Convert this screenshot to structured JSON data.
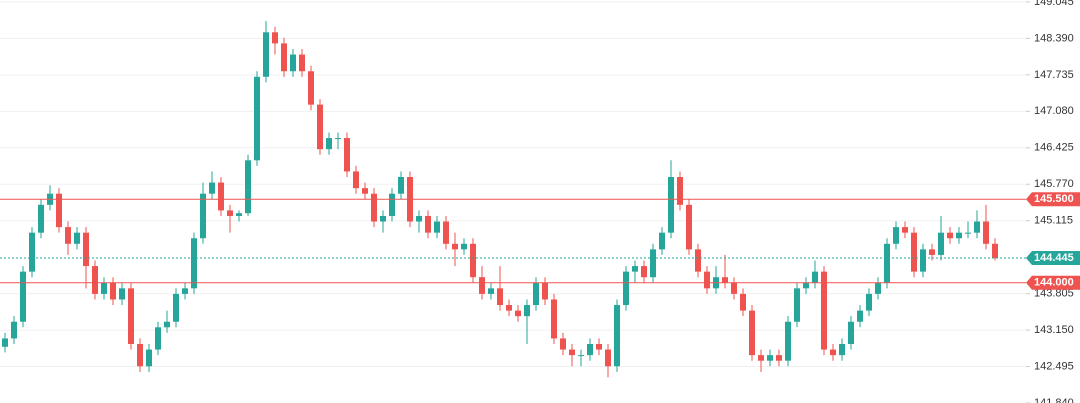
{
  "chart_data": {
    "type": "candlestick",
    "ylim": [
      141.84,
      149.08
    ],
    "yticks": [
      149.045,
      {
        "value": 148.39,
        "label": "148.390"
      },
      147.735,
      {
        "value": 147.08,
        "label": "147.080"
      },
      146.425,
      {
        "value": 145.77,
        "label": "145.770"
      },
      145.115,
      143.805,
      {
        "value": 143.15,
        "label": "143.150"
      },
      142.495,
      {
        "value": 141.84,
        "label": "141.840"
      }
    ],
    "grid": true,
    "up_color": "#26a69a",
    "down_color": "#ef5350",
    "levels": [
      {
        "value": 145.5,
        "label": "145.500",
        "color": "#ef5350"
      },
      {
        "value": 144.0,
        "label": "144.000",
        "color": "#ef5350"
      }
    ],
    "last_price": {
      "value": 144.445,
      "label": "144.445",
      "color": "#26a69a"
    },
    "candles": [
      [
        142.85,
        143.1,
        142.75,
        143.0
      ],
      [
        143.0,
        143.4,
        142.9,
        143.3
      ],
      [
        143.3,
        144.3,
        143.2,
        144.2
      ],
      [
        144.2,
        145.0,
        144.1,
        144.9
      ],
      [
        144.9,
        145.5,
        144.8,
        145.4
      ],
      [
        145.4,
        145.75,
        145.3,
        145.6
      ],
      [
        145.6,
        145.7,
        144.9,
        145.0
      ],
      [
        145.0,
        145.1,
        144.5,
        144.7
      ],
      [
        144.7,
        145.0,
        144.6,
        144.9
      ],
      [
        144.9,
        145.0,
        143.9,
        144.3
      ],
      [
        144.3,
        144.4,
        143.7,
        143.8
      ],
      [
        143.8,
        144.1,
        143.7,
        144.0
      ],
      [
        144.0,
        144.1,
        143.6,
        143.7
      ],
      [
        143.7,
        144.0,
        143.6,
        143.9
      ],
      [
        143.9,
        144.0,
        142.8,
        142.9
      ],
      [
        142.9,
        143.0,
        142.4,
        142.5
      ],
      [
        142.5,
        142.9,
        142.4,
        142.8
      ],
      [
        142.8,
        143.3,
        142.7,
        143.2
      ],
      [
        143.2,
        143.5,
        143.1,
        143.3
      ],
      [
        143.3,
        143.9,
        143.2,
        143.8
      ],
      [
        143.8,
        144.0,
        143.7,
        143.9
      ],
      [
        143.9,
        144.9,
        143.8,
        144.8
      ],
      [
        144.8,
        145.8,
        144.7,
        145.6
      ],
      [
        145.6,
        146.0,
        145.5,
        145.8
      ],
      [
        145.8,
        145.9,
        145.2,
        145.3
      ],
      [
        145.3,
        145.4,
        144.9,
        145.2
      ],
      [
        145.2,
        145.3,
        145.1,
        145.25
      ],
      [
        145.25,
        146.3,
        145.2,
        146.2
      ],
      [
        146.2,
        147.8,
        146.1,
        147.7
      ],
      [
        147.7,
        148.7,
        147.6,
        148.5
      ],
      [
        148.5,
        148.6,
        148.1,
        148.3
      ],
      [
        148.3,
        148.4,
        147.7,
        147.8
      ],
      [
        147.8,
        148.2,
        147.7,
        148.1
      ],
      [
        148.1,
        148.2,
        147.7,
        147.8
      ],
      [
        147.8,
        147.9,
        147.1,
        147.2
      ],
      [
        147.2,
        147.3,
        146.3,
        146.4
      ],
      [
        146.4,
        146.7,
        146.3,
        146.6
      ],
      [
        146.6,
        146.7,
        146.4,
        146.6
      ],
      [
        146.6,
        146.7,
        145.9,
        146.0
      ],
      [
        146.0,
        146.1,
        145.6,
        145.7
      ],
      [
        145.7,
        145.8,
        145.5,
        145.6
      ],
      [
        145.6,
        145.7,
        145.0,
        145.1
      ],
      [
        145.1,
        145.3,
        144.9,
        145.2
      ],
      [
        145.2,
        145.7,
        145.1,
        145.6
      ],
      [
        145.6,
        146.0,
        145.5,
        145.9
      ],
      [
        145.9,
        146.0,
        145.0,
        145.1
      ],
      [
        145.1,
        145.3,
        144.9,
        145.2
      ],
      [
        145.2,
        145.3,
        144.8,
        144.9
      ],
      [
        144.9,
        145.2,
        144.8,
        145.1
      ],
      [
        145.1,
        145.2,
        144.6,
        144.7
      ],
      [
        144.7,
        144.9,
        144.3,
        144.6
      ],
      [
        144.6,
        144.8,
        144.5,
        144.7
      ],
      [
        144.7,
        144.8,
        144.0,
        144.1
      ],
      [
        144.1,
        144.3,
        143.7,
        143.8
      ],
      [
        143.8,
        144.0,
        143.7,
        143.9
      ],
      [
        143.9,
        144.3,
        143.5,
        143.6
      ],
      [
        143.6,
        143.7,
        143.4,
        143.5
      ],
      [
        143.5,
        143.6,
        143.3,
        143.4
      ],
      [
        143.4,
        143.7,
        142.9,
        143.6
      ],
      [
        143.6,
        144.1,
        143.5,
        144.0
      ],
      [
        144.0,
        144.1,
        143.6,
        143.7
      ],
      [
        143.7,
        143.8,
        142.9,
        143.0
      ],
      [
        143.0,
        143.1,
        142.7,
        142.8
      ],
      [
        142.8,
        142.9,
        142.5,
        142.7
      ],
      [
        142.7,
        142.8,
        142.5,
        142.7
      ],
      [
        142.7,
        143.0,
        142.6,
        142.9
      ],
      [
        142.9,
        143.0,
        142.7,
        142.8
      ],
      [
        142.8,
        142.9,
        142.3,
        142.5
      ],
      [
        142.5,
        143.7,
        142.4,
        143.6
      ],
      [
        143.6,
        144.3,
        143.5,
        144.2
      ],
      [
        144.2,
        144.4,
        144.0,
        144.3
      ],
      [
        144.3,
        144.4,
        144.0,
        144.1
      ],
      [
        144.1,
        144.7,
        144.0,
        144.6
      ],
      [
        144.6,
        145.0,
        144.5,
        144.9
      ],
      [
        144.9,
        146.2,
        144.8,
        145.9
      ],
      [
        145.9,
        146.0,
        145.3,
        145.4
      ],
      [
        145.4,
        145.5,
        144.5,
        144.6
      ],
      [
        144.6,
        144.7,
        144.1,
        144.2
      ],
      [
        144.2,
        144.3,
        143.8,
        143.9
      ],
      [
        143.9,
        144.3,
        143.8,
        144.1
      ],
      [
        144.1,
        144.5,
        143.9,
        144.0
      ],
      [
        144.0,
        144.1,
        143.7,
        143.8
      ],
      [
        143.8,
        143.9,
        143.4,
        143.5
      ],
      [
        143.5,
        143.6,
        142.6,
        142.7
      ],
      [
        142.7,
        142.8,
        142.4,
        142.6
      ],
      [
        142.6,
        142.8,
        142.5,
        142.7
      ],
      [
        142.7,
        142.8,
        142.5,
        142.6
      ],
      [
        142.6,
        143.4,
        142.5,
        143.3
      ],
      [
        143.3,
        144.0,
        143.2,
        143.9
      ],
      [
        143.9,
        144.1,
        143.8,
        144.0
      ],
      [
        144.0,
        144.4,
        143.9,
        144.2
      ],
      [
        144.2,
        144.3,
        142.7,
        142.8
      ],
      [
        142.8,
        142.9,
        142.6,
        142.7
      ],
      [
        142.7,
        143.0,
        142.6,
        142.9
      ],
      [
        142.9,
        143.4,
        142.8,
        143.3
      ],
      [
        143.3,
        143.6,
        143.2,
        143.5
      ],
      [
        143.5,
        143.9,
        143.4,
        143.8
      ],
      [
        143.8,
        144.1,
        143.7,
        144.0
      ],
      [
        144.0,
        144.8,
        143.9,
        144.7
      ],
      [
        144.7,
        145.1,
        144.6,
        145.0
      ],
      [
        145.0,
        145.1,
        144.8,
        144.9
      ],
      [
        144.9,
        145.0,
        144.1,
        144.2
      ],
      [
        144.2,
        144.7,
        144.1,
        144.6
      ],
      [
        144.6,
        144.7,
        144.4,
        144.5
      ],
      [
        144.5,
        145.2,
        144.4,
        144.9
      ],
      [
        144.9,
        145.0,
        144.7,
        144.8
      ],
      [
        144.8,
        145.0,
        144.7,
        144.9
      ],
      [
        144.9,
        145.1,
        144.8,
        144.9
      ],
      [
        144.9,
        145.3,
        144.8,
        145.1
      ],
      [
        145.1,
        145.4,
        144.6,
        144.7
      ],
      [
        144.7,
        144.8,
        144.4,
        144.445
      ]
    ]
  }
}
